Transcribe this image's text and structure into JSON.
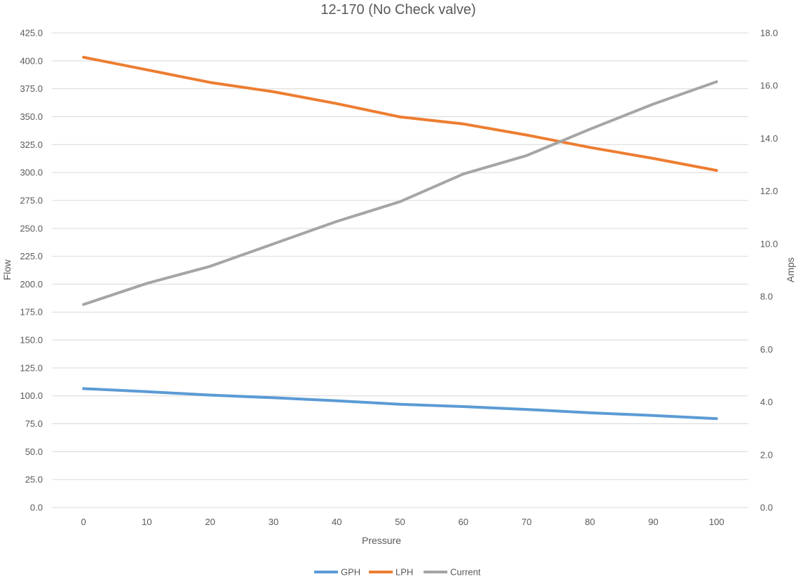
{
  "chart_data": {
    "type": "line",
    "title": "12-170 (No Check valve)",
    "xlabel": "Pressure",
    "ylabel": "Flow",
    "y2label": "Amps",
    "x": [
      0,
      10,
      20,
      30,
      40,
      50,
      60,
      70,
      80,
      90,
      100
    ],
    "ylim": [
      0,
      425
    ],
    "y2lim": [
      0,
      18
    ],
    "yticks": [
      "0.0",
      "25.0",
      "50.0",
      "75.0",
      "100.0",
      "125.0",
      "150.0",
      "175.0",
      "200.0",
      "225.0",
      "250.0",
      "275.0",
      "300.0",
      "325.0",
      "350.0",
      "375.0",
      "400.0",
      "425.0"
    ],
    "y2ticks": [
      "0.0",
      "2.0",
      "4.0",
      "6.0",
      "8.0",
      "10.0",
      "12.0",
      "14.0",
      "16.0",
      "18.0"
    ],
    "grid": true,
    "legend_position": "bottom",
    "series": [
      {
        "name": "GPH",
        "axis": "left",
        "color": "#5b9bd5",
        "values": [
          106.5,
          103.7,
          100.7,
          98.3,
          95.6,
          92.4,
          90.4,
          87.8,
          84.8,
          82.4,
          79.6
        ]
      },
      {
        "name": "LPH",
        "axis": "left",
        "color": "#ed7d31",
        "values": [
          403.2,
          392.0,
          380.7,
          372.3,
          361.7,
          349.8,
          343.5,
          333.6,
          322.5,
          312.6,
          301.9
        ]
      },
      {
        "name": "Current",
        "axis": "right",
        "color": "#a5a5a5",
        "values": [
          7.7,
          8.5,
          9.15,
          10.0,
          10.85,
          11.6,
          12.65,
          13.35,
          14.35,
          15.3,
          16.15
        ]
      }
    ]
  }
}
